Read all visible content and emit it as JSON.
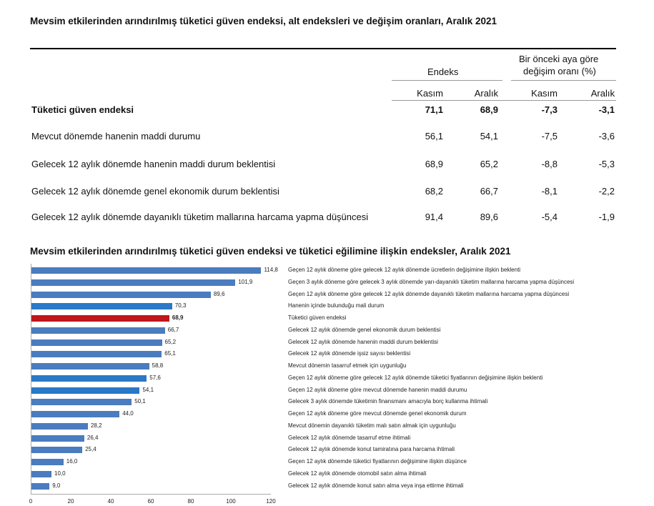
{
  "table": {
    "title": "Mevsim etkilerinden arındırılmış tüketici güven endeksi, alt endeksleri ve değişim oranları, Aralık 2021",
    "group_endeks": "Endeks",
    "group_change_1": "Bir önceki aya göre",
    "group_change_2": "değişim oranı (%)",
    "columns": [
      "Kasım",
      "Aralık",
      "Kasım",
      "Aralık"
    ],
    "rows": [
      {
        "label": "Tüketici güven endeksi",
        "values": [
          "71,1",
          "68,9",
          "-7,3",
          "-3,1"
        ],
        "bold": true
      },
      {
        "label": "Mevcut dönemde hanenin maddi durumu",
        "values": [
          "56,1",
          "54,1",
          "-7,5",
          "-3,6"
        ]
      },
      {
        "label": "Gelecek 12 aylık dönemde hanenin maddi durum beklentisi",
        "values": [
          "68,9",
          "65,2",
          "-8,8",
          "-5,3"
        ]
      },
      {
        "label": "Gelecek 12 aylık dönemde genel ekonomik durum beklentisi",
        "values": [
          "68,2",
          "66,7",
          "-8,1",
          "-2,2"
        ]
      },
      {
        "label": "Gelecek 12 aylık dönemde dayanıklı tüketim mallarına harcama yapma düşüncesi",
        "values": [
          "91,4",
          "89,6",
          "-5,4",
          "-1,9"
        ]
      }
    ]
  },
  "chart_data": {
    "type": "bar",
    "orientation": "horizontal",
    "title": "Mevsim etkilerinden arındırılmış tüketici güven endeksi ve tüketici eğilimine ilişkin endeksler, Aralık 2021",
    "xlim": [
      0,
      120
    ],
    "xticks": [
      "0",
      "20",
      "40",
      "60",
      "80",
      "100",
      "120"
    ],
    "colors": {
      "default": "#4a7cbf",
      "highlight_blue": "#2a78c8",
      "highlight_red": "#c0161c"
    },
    "categories": [
      "Geçen 12 aylık döneme göre gelecek 12 aylık dönemde ücretlerin değişimine ilişkin beklenti",
      "Geçen 3 aylık döneme göre gelecek 3 aylık dönemde yarı-dayanıklı tüketim mallarına harcama yapma düşüncesi",
      "Geçen 12 aylık döneme göre gelecek 12 aylık dönemde  dayanıklı tüketim mallarına harcama yapma düşüncesi",
      "Hanenin içinde bulunduğu mali durum",
      "Tüketici güven endeksi",
      "Gelecek 12 aylık dönemde genel ekonomik durum beklentisi",
      "Gelecek 12 aylık dönemde hanenin maddi durum beklentisi",
      "Gelecek 12 aylık dönemde işsiz sayısı beklentisi",
      "Mevcut dönemin tasarruf etmek için uygunluğu",
      "Geçen 12 aylık döneme göre gelecek 12 aylık dönemde tüketici fiyatlarının değişimine ilişkin beklenti",
      "Geçen 12 aylık döneme göre mevcut dönemde hanenin maddi durumu",
      "Gelecek 3 aylık dönemde tüketimin finansmanı amacıyla borç kullanma ihtimali",
      "Geçen 12 aylık döneme göre mevcut dönemde genel ekonomik durum",
      "Mevcut dönemin dayanıklı tüketim malı satın almak için uygunluğu",
      "Gelecek 12 aylık dönemde tasarruf etme ihtimali",
      "Gelecek 12 aylık dönemde konut tamiratına para harcama ihtimali",
      "Geçen 12 aylık dönemde tüketici fiyatlarının değişimine ilişkin düşünce",
      "Gelecek 12 aylık dönemde otomobil satın alma ihtimali",
      "Gelecek 12 aylık dönemde konut satın alma veya inşa ettirme ihtimali"
    ],
    "values": [
      114.8,
      101.9,
      89.6,
      70.3,
      68.9,
      66.7,
      65.2,
      65.1,
      58.8,
      57.6,
      54.1,
      50.1,
      44.0,
      28.2,
      26.4,
      25.4,
      16.0,
      10.0,
      9.0
    ],
    "value_labels": [
      "114,8",
      "101,9",
      "89,6",
      "70,3",
      "68,9",
      "66,7",
      "65,2",
      "65,1",
      "58,8",
      "57,6",
      "54,1",
      "50,1",
      "44,0",
      "28,2",
      "26,4",
      "25,4",
      "16,0",
      "10,0",
      "9,0"
    ],
    "bar_color_keys": [
      "default",
      "default",
      "default",
      "highlight_blue",
      "highlight_red",
      "default",
      "default",
      "default",
      "default",
      "highlight_blue",
      "highlight_blue",
      "default",
      "default",
      "default",
      "default",
      "default",
      "default",
      "default",
      "default"
    ]
  }
}
